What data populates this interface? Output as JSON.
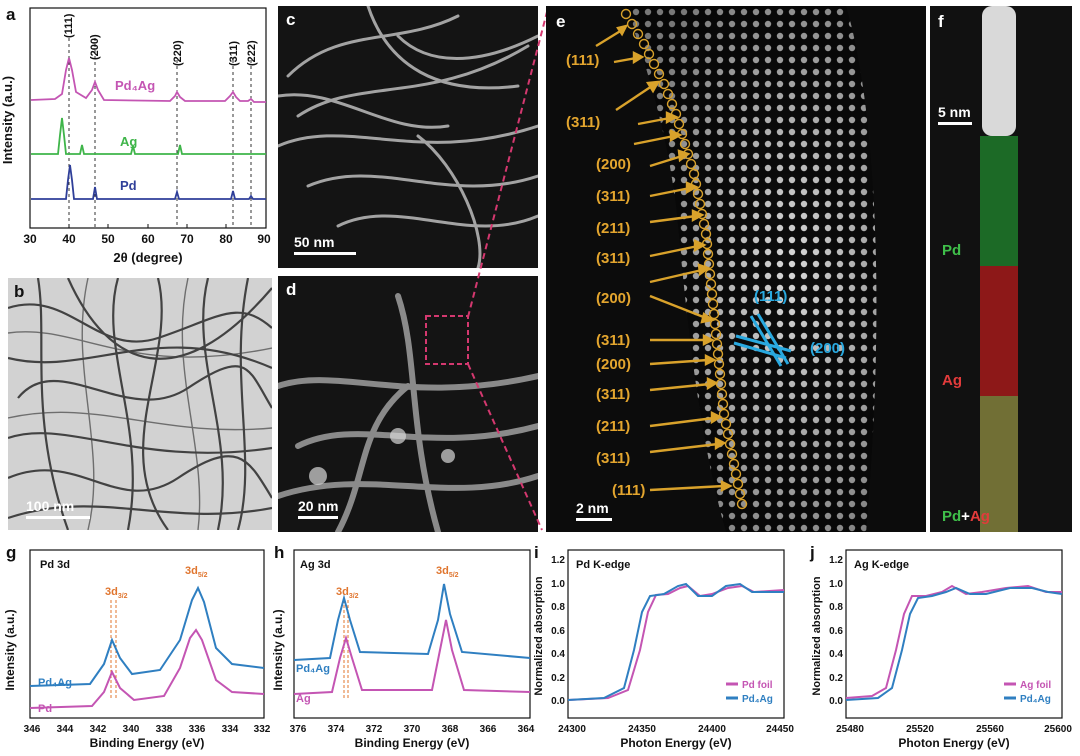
{
  "panels": {
    "a": {
      "label": "a",
      "xlabel": "2θ (degree)",
      "ylabel": "Intensity (a.u.)",
      "xticks": [
        "30",
        "40",
        "50",
        "60",
        "70",
        "80",
        "90"
      ],
      "peak_labels": [
        "(111)",
        "(200)",
        "(220)",
        "(311)",
        "(222)"
      ],
      "series": [
        {
          "name": "Pd₄Ag",
          "color": "#c455b3"
        },
        {
          "name": "Ag",
          "color": "#3fb54a"
        },
        {
          "name": "Pd",
          "color": "#2f3f99"
        }
      ]
    },
    "b": {
      "label": "b",
      "scale": "100 nm"
    },
    "c": {
      "label": "c",
      "scale": "50 nm"
    },
    "d": {
      "label": "d",
      "scale": "20 nm"
    },
    "e": {
      "label": "e",
      "scale": "2 nm",
      "facets": [
        "(111)",
        "(311)",
        "(200)",
        "(311)",
        "(211)",
        "(311)",
        "(200)",
        "(311)",
        "(200)",
        "(311)",
        "(211)",
        "(311)",
        "(111)"
      ],
      "lattice": [
        "(111)",
        "(200)"
      ]
    },
    "f": {
      "label": "f",
      "scale": "5 nm",
      "map_pd": "Pd",
      "map_ag": "Ag",
      "map_pd2": "Pd",
      "plus": "+",
      "map_ag2": "Ag"
    },
    "g": {
      "label": "g",
      "title": "Pd 3d",
      "xlabel": "Binding Energy (eV)",
      "ylabel": "Intensity (a.u.)",
      "xticks": [
        "346",
        "344",
        "342",
        "340",
        "338",
        "336",
        "334",
        "332"
      ],
      "peak1_main": "3d",
      "peak1_sub": "3/2",
      "peak2_main": "3d",
      "peak2_sub": "5/2",
      "series": [
        {
          "name": "Pd₄Ag",
          "color": "#2f7fc1"
        },
        {
          "name": "Pd",
          "color": "#c455b3"
        }
      ]
    },
    "h": {
      "label": "h",
      "title": "Ag 3d",
      "xlabel": "Binding Energy (eV)",
      "ylabel": "Intensity (a.u.)",
      "xticks": [
        "376",
        "374",
        "372",
        "370",
        "368",
        "366",
        "364"
      ],
      "peak1_main": "3d",
      "peak1_sub": "3/2",
      "peak2_main": "3d",
      "peak2_sub": "5/2",
      "series": [
        {
          "name": "Pd₄Ag",
          "color": "#2f7fc1"
        },
        {
          "name": "Ag",
          "color": "#c455b3"
        }
      ]
    },
    "i": {
      "label": "i",
      "title": "Pd K-edge",
      "xlabel": "Photon Energy (eV)",
      "ylabel": "Normalized absorption",
      "xticks": [
        "24300",
        "24350",
        "24400",
        "24450"
      ],
      "yticks": [
        "0.0",
        "0.2",
        "0.4",
        "0.6",
        "0.8",
        "1.0",
        "1.2"
      ],
      "series": [
        {
          "name": "Pd foil",
          "color": "#c455b3"
        },
        {
          "name": "Pd₄Ag",
          "color": "#2f7fc1"
        }
      ]
    },
    "j": {
      "label": "j",
      "title": "Ag K-edge",
      "xlabel": "Photon Energy (eV)",
      "ylabel": "Normalized absorption",
      "xticks": [
        "25480",
        "25520",
        "25560",
        "25600"
      ],
      "yticks": [
        "0.0",
        "0.2",
        "0.4",
        "0.6",
        "0.8",
        "1.0",
        "1.2"
      ],
      "series": [
        {
          "name": "Ag foil",
          "color": "#c455b3"
        },
        {
          "name": "Pd₄Ag",
          "color": "#2f7fc1"
        }
      ]
    }
  }
}
